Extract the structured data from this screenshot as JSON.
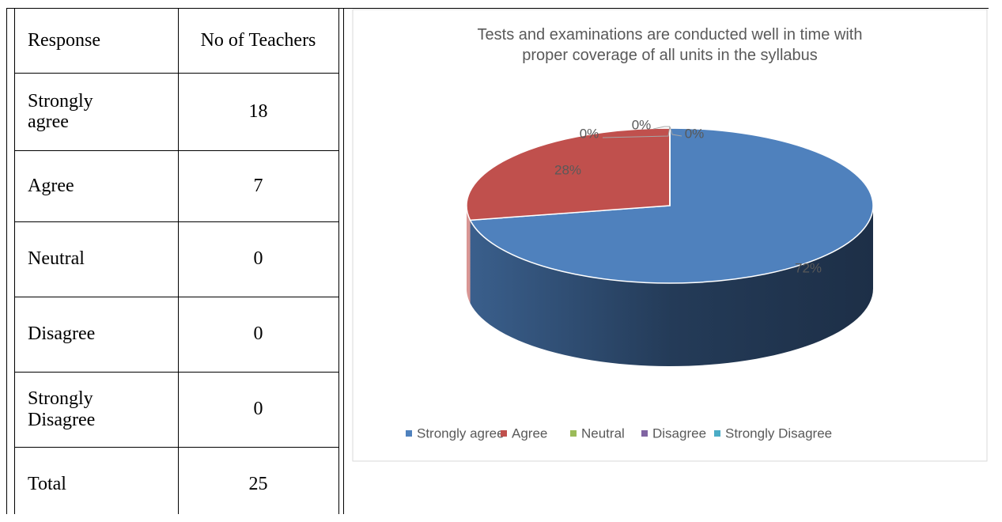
{
  "table": {
    "header": [
      "Response",
      "No of Teachers"
    ],
    "rows": [
      [
        "Strongly agree",
        18
      ],
      [
        "Agree",
        7
      ],
      [
        "Neutral",
        0
      ],
      [
        "Disagree",
        0
      ],
      [
        "Strongly Disagree",
        0
      ],
      [
        "Total",
        25
      ]
    ]
  },
  "chart_data": {
    "type": "pie",
    "title": "Tests and examinations are conducted well in time with proper coverage of all units in the syllabus",
    "categories": [
      "Strongly agree",
      "Agree",
      "Neutral",
      "Disagree",
      "Strongly Disagree"
    ],
    "values": [
      72,
      28,
      0,
      0,
      0
    ],
    "value_labels": [
      "72%",
      "28%",
      "0%",
      "0%",
      "0%"
    ],
    "colors": [
      "#4f81bd",
      "#c0504d",
      "#9bbb59",
      "#8064a2",
      "#4bacc6"
    ],
    "legend": "bottom"
  }
}
